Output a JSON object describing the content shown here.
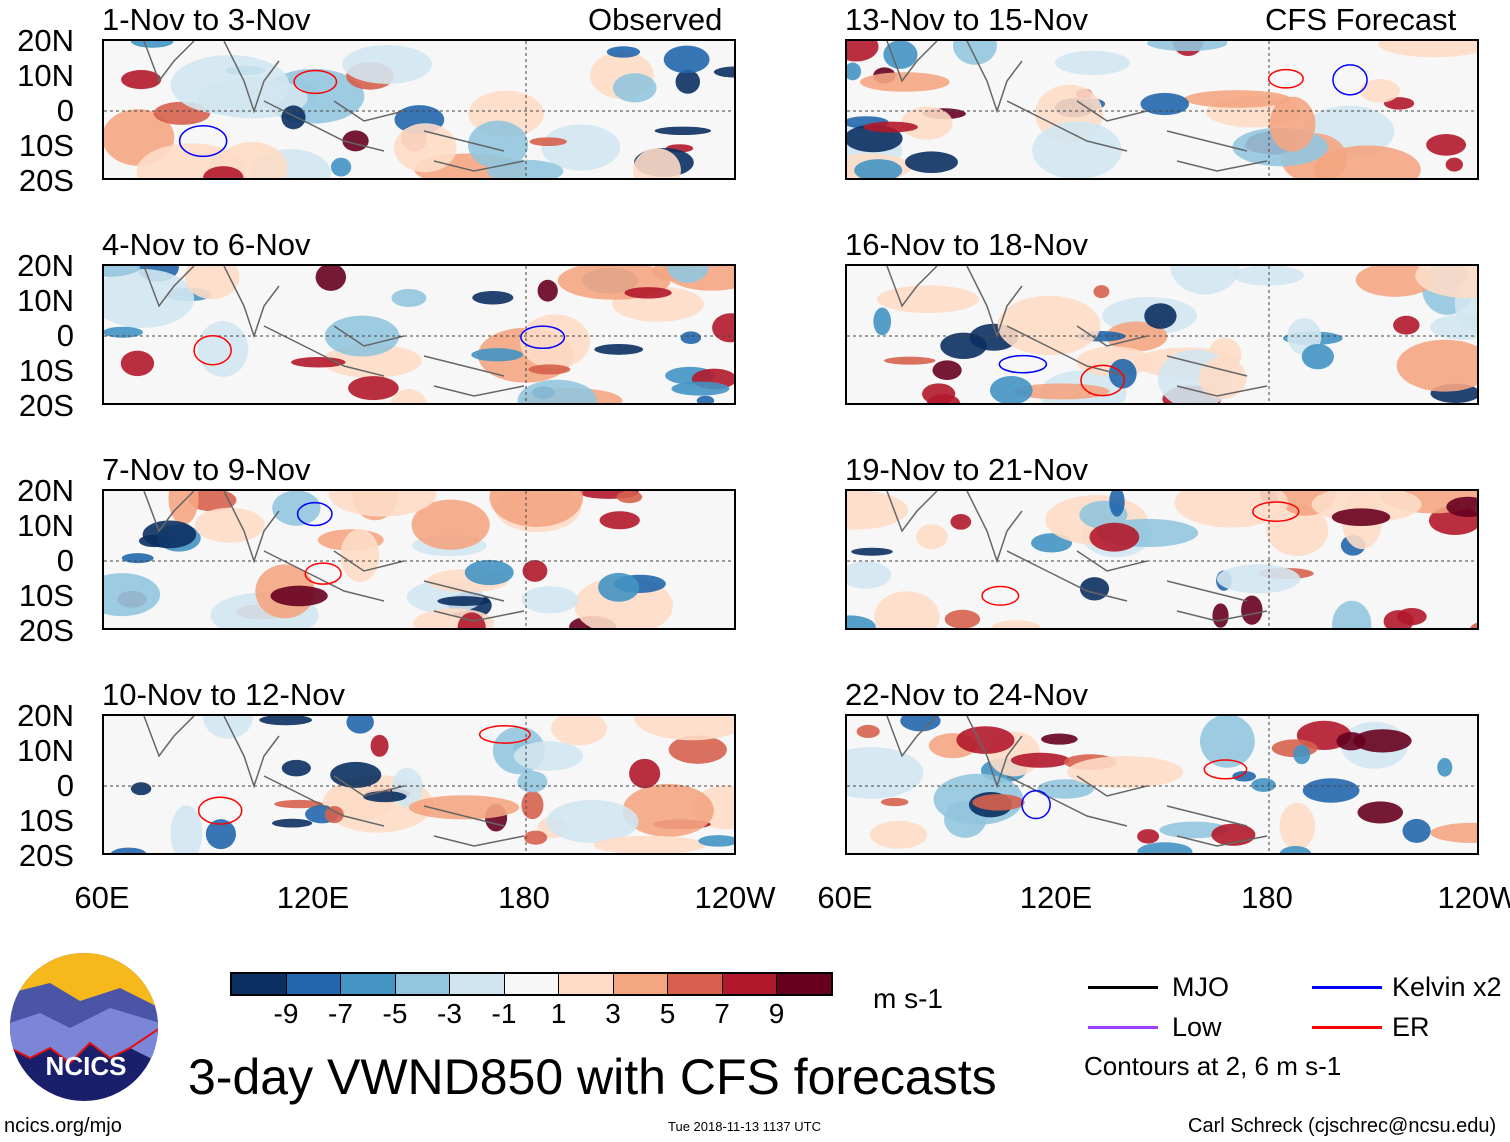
{
  "figure": {
    "title": "3-day VWND850 with CFS forecasts",
    "left_header": "Observed",
    "right_header": "CFS Forecast",
    "url": "ncics.org/mjo",
    "timestamp": "Tue 2018-11-13 1137 UTC",
    "author": "Carl Schreck (cjschrec@ncsu.edu)",
    "logo_text": "NCICS"
  },
  "panels": {
    "left": [
      "1-Nov to 3-Nov",
      "4-Nov to 6-Nov",
      "7-Nov to 9-Nov",
      "10-Nov to 12-Nov"
    ],
    "right": [
      "13-Nov to 15-Nov",
      "16-Nov to 18-Nov",
      "19-Nov to 21-Nov",
      "22-Nov to 24-Nov"
    ]
  },
  "axes": {
    "lat_labels": [
      "20N",
      "10N",
      "0",
      "10S",
      "20S"
    ],
    "lon_labels": [
      "60E",
      "120E",
      "180",
      "120W"
    ]
  },
  "colorbar": {
    "labels": [
      "-9",
      "-7",
      "-5",
      "-3",
      "-1",
      "1",
      "3",
      "5",
      "7",
      "9"
    ],
    "units": "m s-1",
    "colors": [
      "#0b2f60",
      "#2166ac",
      "#4393c3",
      "#92c5de",
      "#d1e5f0",
      "#f7f7f7",
      "#fddbc7",
      "#f4a582",
      "#d6604d",
      "#b2182b",
      "#67001f"
    ]
  },
  "legend": {
    "items": [
      {
        "label": "MJO",
        "color": "#000000"
      },
      {
        "label": "Kelvin x2",
        "color": "#0000ff"
      },
      {
        "label": "Low",
        "color": "#a040ff"
      },
      {
        "label": "ER",
        "color": "#ff0000"
      }
    ],
    "note": "Contours at 2, 6 m s-1"
  }
}
